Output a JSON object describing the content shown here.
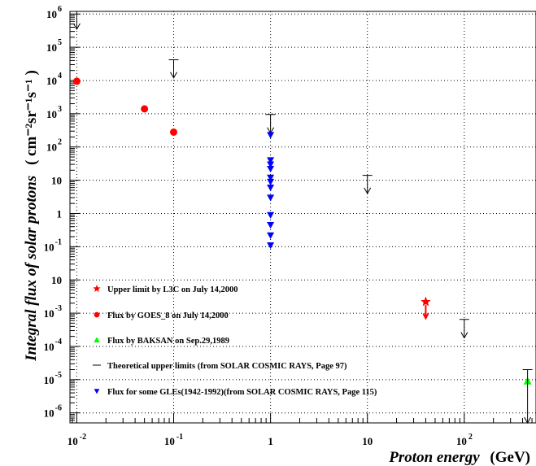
{
  "chart_data": {
    "type": "scatter",
    "xscale": "log",
    "yscale": "log",
    "xlim": [
      0.0085,
      550
    ],
    "ylim": [
      5e-07,
      1200000
    ],
    "grid": true,
    "xlabel": "Proton energy",
    "xunit": "(GeV)",
    "ylabel": "Integral flux of solar protons",
    "yunit": "( cm⁻²sr⁻¹s⁻¹ )",
    "x_ticks": [
      {
        "value": 0.01,
        "base": "10",
        "exp": "-2"
      },
      {
        "value": 0.1,
        "base": "10",
        "exp": "-1"
      },
      {
        "value": 1,
        "base": "1",
        "exp": ""
      },
      {
        "value": 10,
        "base": "10",
        "exp": ""
      },
      {
        "value": 100,
        "base": "10",
        "exp": "2"
      }
    ],
    "y_ticks": [
      {
        "value": 1000000,
        "base": "10",
        "exp": "6"
      },
      {
        "value": 100000,
        "base": "10",
        "exp": "5"
      },
      {
        "value": 10000,
        "base": "10",
        "exp": "4"
      },
      {
        "value": 1000,
        "base": "10",
        "exp": "3"
      },
      {
        "value": 100,
        "base": "10",
        "exp": "2"
      },
      {
        "value": 10,
        "base": "10",
        "exp": ""
      },
      {
        "value": 1,
        "base": "1",
        "exp": ""
      },
      {
        "value": 0.1,
        "base": "10",
        "exp": "-1"
      },
      {
        "value": 0.01,
        "base": "10",
        "exp": ""
      },
      {
        "value": 0.001,
        "base": "10",
        "exp": "-3"
      },
      {
        "value": 0.0001,
        "base": "10",
        "exp": "-4"
      },
      {
        "value": 1e-05,
        "base": "10",
        "exp": "-5"
      },
      {
        "value": 1e-06,
        "base": "10",
        "exp": "-6"
      }
    ],
    "series": [
      {
        "name": "Upper limit by L3C on July 14,2000",
        "marker": "star",
        "color": "#ff0000",
        "points": [
          {
            "x": 40,
            "y": 0.0022,
            "arrow_to": 0.0007
          }
        ]
      },
      {
        "name": "Flux by GOES_8 on July 14,2000",
        "marker": "circle",
        "color": "#ff0000",
        "points": [
          {
            "x": 0.01,
            "y": 9500
          },
          {
            "x": 0.05,
            "y": 1400
          },
          {
            "x": 0.1,
            "y": 280
          }
        ]
      },
      {
        "name": "Flux by BAKSAN on Sep.29,1989",
        "marker": "triangle-up",
        "color": "#00ff00",
        "points": [
          {
            "x": 450,
            "y": 9e-06
          }
        ]
      },
      {
        "name": "Theoretical upper limits (from SOLAR COSMIC RAYS, Page 97)",
        "marker": "upper-limit",
        "color": "#000000",
        "points": [
          {
            "x": 0.01,
            "y": 1200000,
            "arrow_to": 350000
          },
          {
            "x": 0.1,
            "y": 42000,
            "arrow_to": 12000
          },
          {
            "x": 1,
            "y": 950,
            "arrow_to": 260
          },
          {
            "x": 10,
            "y": 14,
            "arrow_to": 4
          },
          {
            "x": 100,
            "y": 0.00065,
            "arrow_to": 0.00018
          },
          {
            "x": 450,
            "y": 2e-05,
            "arrow_to": 5e-07
          }
        ]
      },
      {
        "name": "Flux for some GLEs(1942-1992)(from SOLAR COSMIC RAYS, Page 115)",
        "marker": "triangle-down",
        "color": "#0000ff",
        "points": [
          {
            "x": 1,
            "y": 230
          },
          {
            "x": 1,
            "y": 40
          },
          {
            "x": 1,
            "y": 30
          },
          {
            "x": 1,
            "y": 22
          },
          {
            "x": 1,
            "y": 12
          },
          {
            "x": 1,
            "y": 9
          },
          {
            "x": 1,
            "y": 6
          },
          {
            "x": 1,
            "y": 3
          },
          {
            "x": 1,
            "y": 0.9
          },
          {
            "x": 1,
            "y": 0.45
          },
          {
            "x": 1,
            "y": 0.22
          },
          {
            "x": 1,
            "y": 0.11
          }
        ]
      }
    ]
  }
}
